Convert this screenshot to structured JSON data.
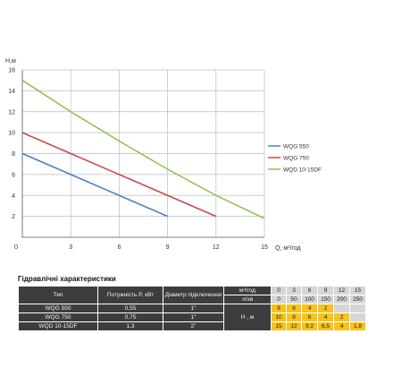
{
  "chart_data": {
    "type": "line",
    "xlabel": "Q, м³/год",
    "ylabel": "H,м",
    "xlim": [
      0,
      15
    ],
    "ylim": [
      0,
      16
    ],
    "x_ticks": [
      "0",
      "3",
      "6",
      "9",
      "12",
      "15"
    ],
    "y_ticks": [
      "2",
      "4",
      "6",
      "8",
      "10",
      "12",
      "14",
      "16"
    ],
    "grid": true,
    "legend_position": "right",
    "series": [
      {
        "name": "WQG 550",
        "color": "#4a7fc1",
        "x": [
          0,
          3,
          6,
          9
        ],
        "y": [
          8,
          6,
          4,
          2
        ]
      },
      {
        "name": "WQG 750",
        "color": "#c84a4a",
        "x": [
          0,
          3,
          6,
          9,
          12
        ],
        "y": [
          10,
          8,
          6,
          4,
          2
        ]
      },
      {
        "name": "WQD 10-15DF",
        "color": "#8cc04a",
        "x": [
          0,
          3,
          6,
          9,
          12,
          15
        ],
        "y": [
          15,
          12,
          9.2,
          6.5,
          4,
          1.8
        ]
      }
    ]
  },
  "table": {
    "title": "Гідравлічні характеристики",
    "col_type": "Тип",
    "col_power": "Потужність  P, кВт",
    "col_diameter": "Діаметр підключення",
    "unit_q1": "м³/год",
    "unit_q2": "л/хв",
    "h_label": "Н , м",
    "q_m3h": [
      "0",
      "3",
      "6",
      "9",
      "12",
      "15"
    ],
    "q_lmin": [
      "0",
      "50",
      "100",
      "150",
      "200",
      "250"
    ],
    "rows": [
      {
        "type": "WQG 550",
        "power": "0,55",
        "diameter": "1\"",
        "h": [
          "8",
          "6",
          "4",
          "2",
          "",
          ""
        ]
      },
      {
        "type": "WQG 750",
        "power": "0,75",
        "diameter": "1\"",
        "h": [
          "10",
          "8",
          "6",
          "4",
          "2",
          ""
        ]
      },
      {
        "type": "WQD 10-15DF",
        "power": "1,3",
        "diameter": "2\"",
        "h": [
          "15",
          "12",
          "9,2",
          "6,5",
          "4",
          "1,8"
        ]
      }
    ]
  }
}
